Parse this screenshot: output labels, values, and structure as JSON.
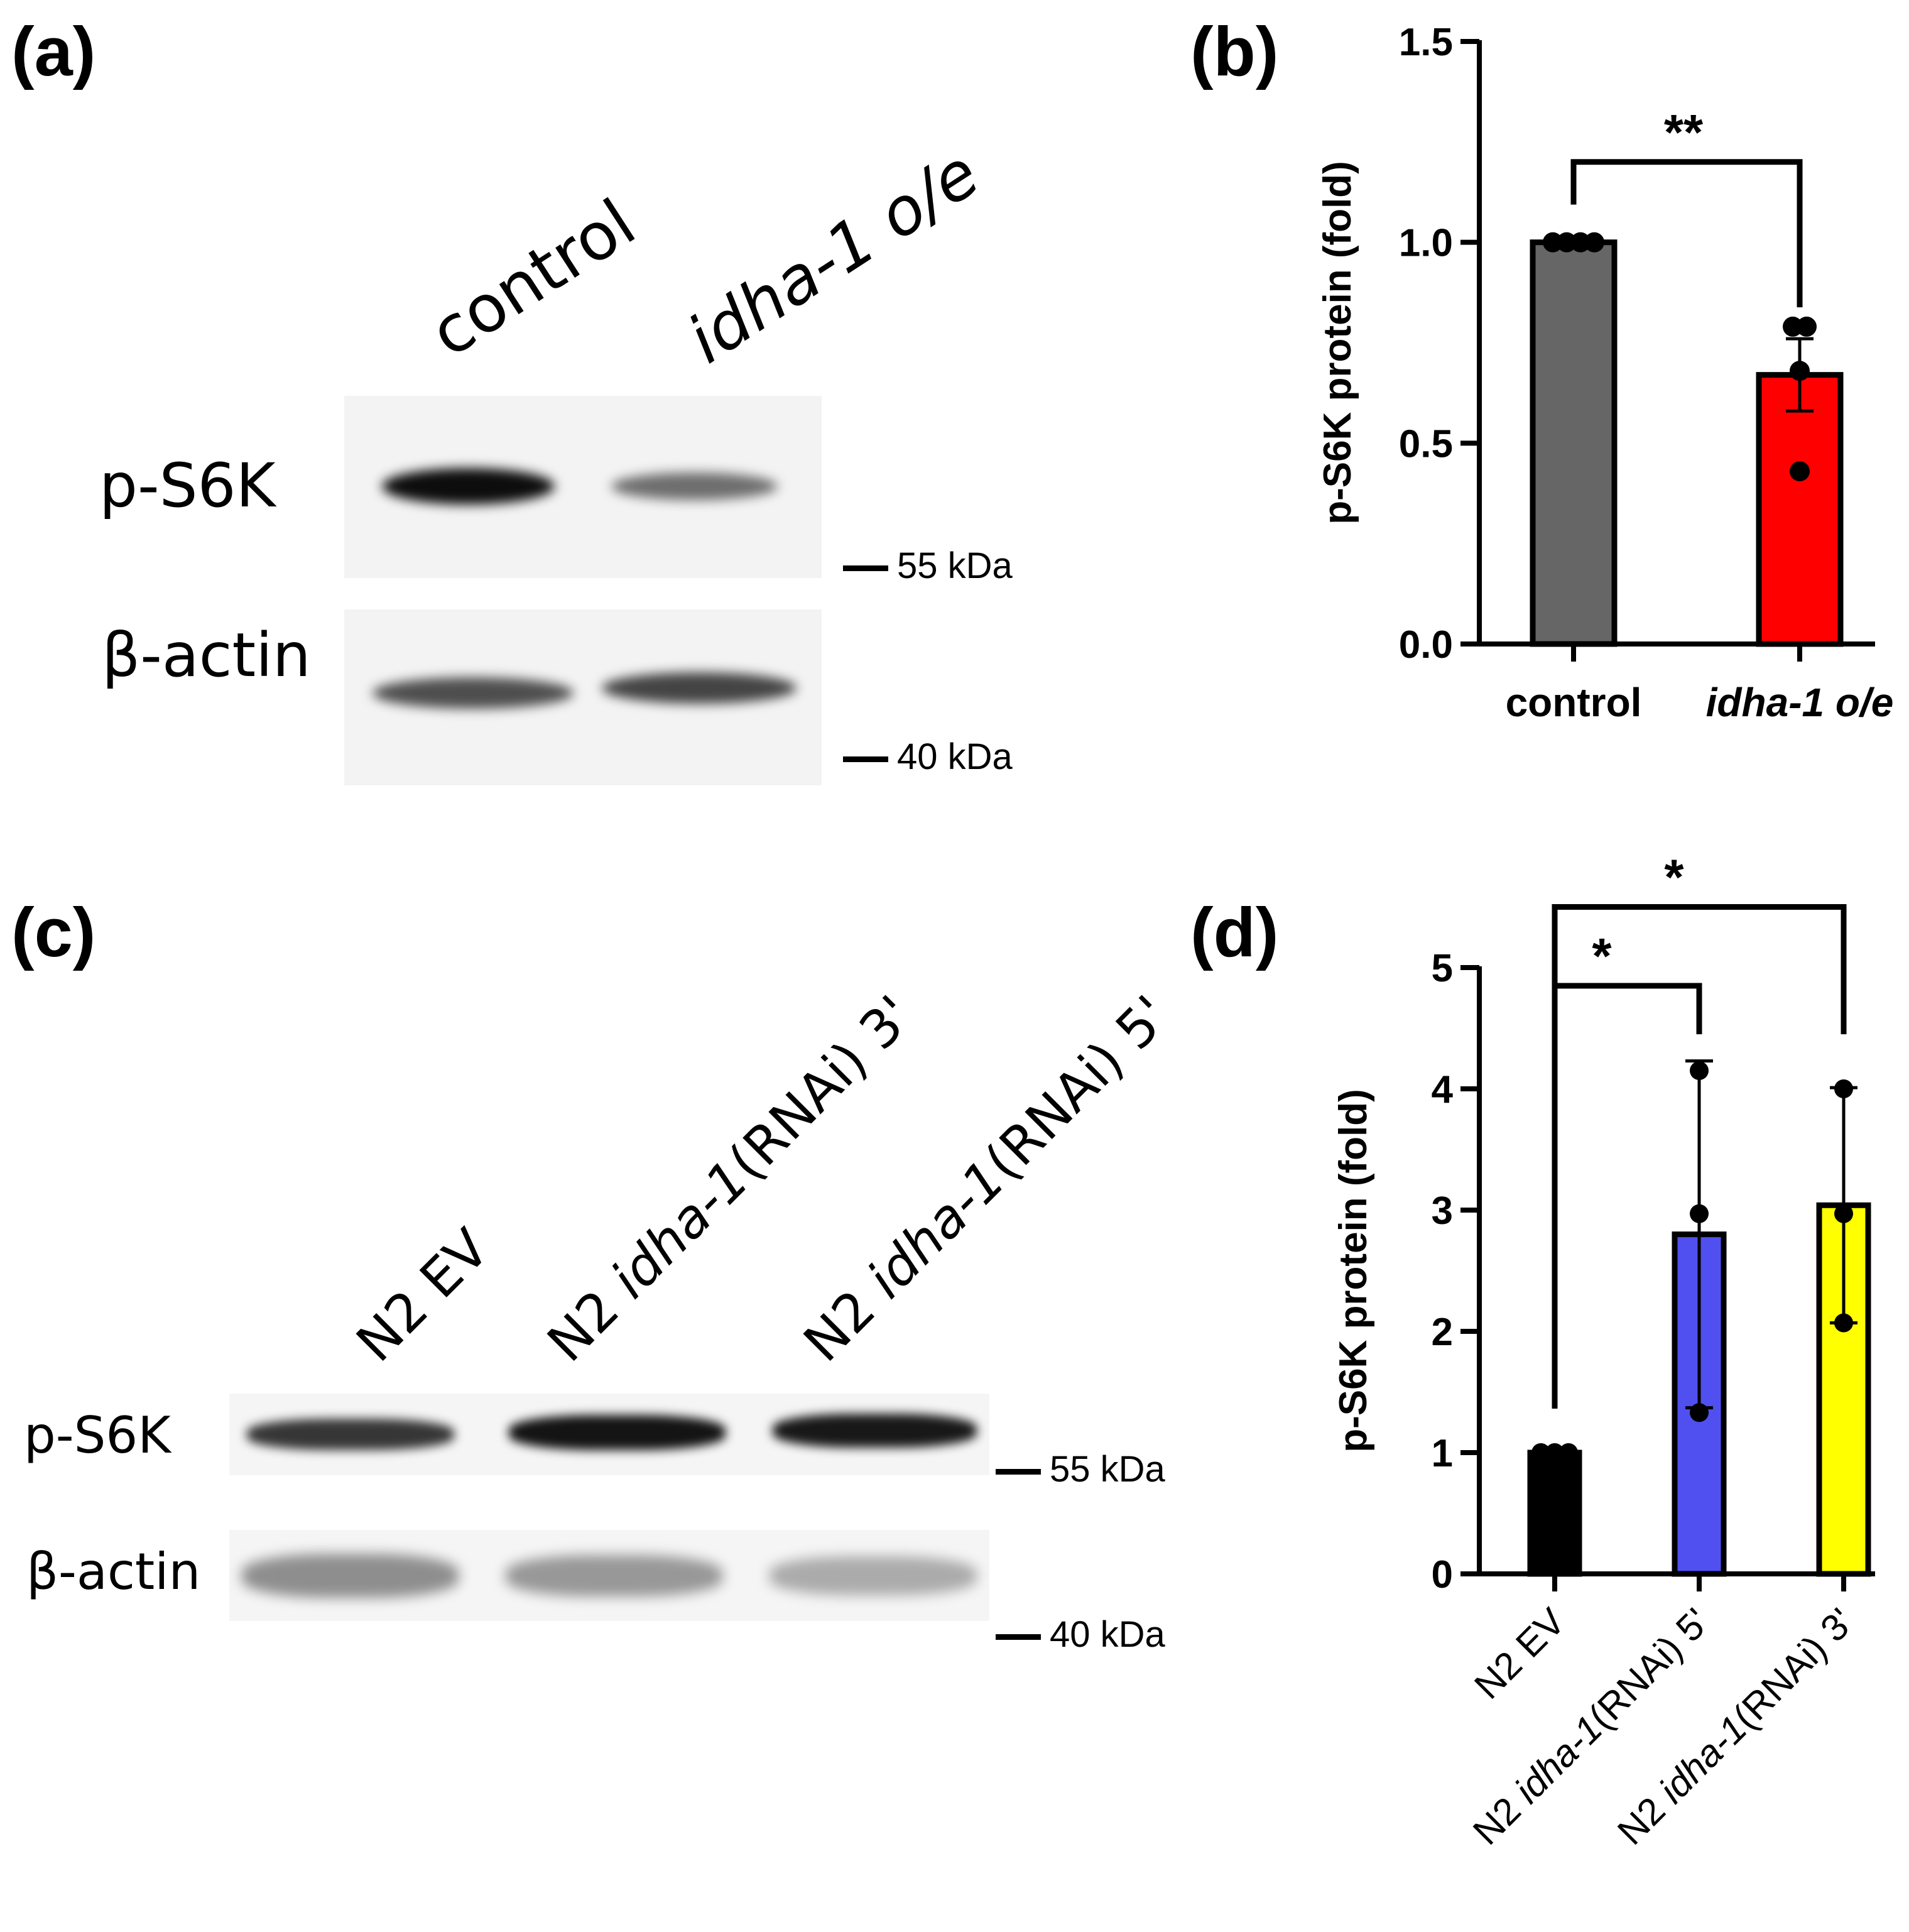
{
  "panels": {
    "a": {
      "letter": "(a)",
      "lanes": [
        "control",
        "idha-1 o/e"
      ],
      "rows": [
        {
          "label": "p-S6K",
          "marker": "55 kDa",
          "intensities": [
            0.95,
            0.55
          ]
        },
        {
          "label": "β-actin",
          "marker": "40 kDa",
          "intensities": [
            0.7,
            0.72
          ]
        }
      ]
    },
    "b": {
      "letter": "(b)"
    },
    "c": {
      "letter": "(c)",
      "lanes": [
        {
          "prefix": "N2 ",
          "gene": "",
          "suffix": "EV"
        },
        {
          "prefix": "N2 ",
          "gene": "idha-1",
          "suffix": "(RNAi) 3'"
        },
        {
          "prefix": "N2 ",
          "gene": "idha-1",
          "suffix": "(RNAi) 5'"
        }
      ],
      "rows": [
        {
          "label": "p-S6K",
          "marker": "55 kDa",
          "intensities": [
            0.78,
            0.92,
            0.9
          ]
        },
        {
          "label": "β-actin",
          "marker": "40 kDa",
          "intensities": [
            0.42,
            0.38,
            0.3
          ]
        }
      ]
    },
    "d": {
      "letter": "(d)"
    }
  },
  "chart_data": [
    {
      "type": "bar",
      "panel": "b",
      "categories": [
        "control",
        "idha-1 o/e"
      ],
      "values": [
        1.0,
        0.67
      ],
      "errors": [
        0.0,
        0.09
      ],
      "points": [
        [
          1.0,
          1.0,
          1.0,
          1.0
        ],
        [
          0.79,
          0.79,
          0.68,
          0.43
        ]
      ],
      "colors": [
        "#666666",
        "#ff0000"
      ],
      "ylabel": "p-S6K protein (fold)",
      "ylim": [
        0,
        1.5
      ],
      "yticks": [
        "0.0",
        "0.5",
        "1.0",
        "1.5"
      ],
      "significance": [
        {
          "from": 0,
          "to": 1,
          "label": "**"
        }
      ]
    },
    {
      "type": "bar",
      "panel": "d",
      "categories": [
        "N2 EV",
        "N2 idha-1(RNAi) 5'",
        "N2 idha-1(RNAi) 3'"
      ],
      "category_parts": [
        {
          "prefix": "N2 EV",
          "gene": "",
          "suffix": ""
        },
        {
          "prefix": "N2 ",
          "gene": "idha-1",
          "suffix": "(RNAi) 5'"
        },
        {
          "prefix": "N2 ",
          "gene": "idha-1",
          "suffix": "(RNAi) 3'"
        }
      ],
      "values": [
        1.0,
        2.8,
        3.04
      ],
      "errors": [
        0.0,
        1.43,
        0.97
      ],
      "points": [
        [
          1.0,
          1.0,
          1.0
        ],
        [
          4.15,
          2.97,
          1.33
        ],
        [
          4.0,
          2.97,
          2.07
        ]
      ],
      "colors": [
        "#000000",
        "#5050f0",
        "#ffff00"
      ],
      "ylabel": "p-S6K protein (fold)",
      "ylim": [
        0,
        5
      ],
      "yticks": [
        "0",
        "1",
        "2",
        "3",
        "4",
        "5"
      ],
      "significance": [
        {
          "from": 0,
          "to": 1,
          "label": "*"
        },
        {
          "from": 0,
          "to": 2,
          "label": "*"
        }
      ]
    }
  ]
}
